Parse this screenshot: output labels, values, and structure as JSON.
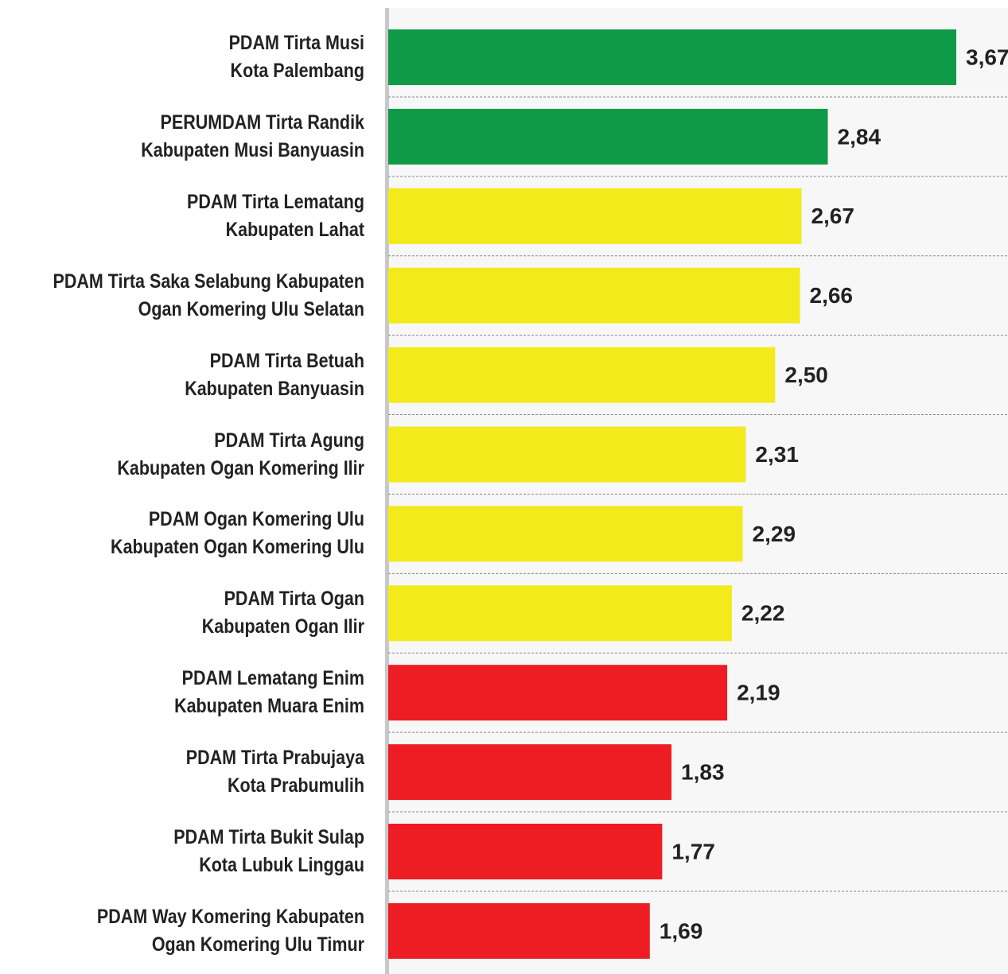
{
  "chart_data": {
    "type": "hbar",
    "categories": [
      "PDAM Tirta Musi\nKota Palembang",
      "PERUMDAM Tirta Randik\nKabupaten Musi Banyuasin",
      "PDAM Tirta Lematang\nKabupaten Lahat",
      "PDAM Tirta Saka Selabung Kabupaten\nOgan Komering Ulu Selatan",
      "PDAM Tirta Betuah\nKabupaten Banyuasin",
      "PDAM Tirta Agung\nKabupaten Ogan Komering Ilir",
      "PDAM Ogan Komering Ulu\nKabupaten Ogan Komering Ulu",
      "PDAM Tirta Ogan\nKabupaten Ogan Ilir",
      "PDAM Lematang Enim\nKabupaten Muara Enim",
      "PDAM Tirta Prabujaya\nKota Prabumulih",
      "PDAM Tirta Bukit Sulap\nKota Lubuk Linggau",
      "PDAM Way Komering Kabupaten\nOgan Komering Ulu Timur"
    ],
    "values": [
      3.67,
      2.84,
      2.67,
      2.66,
      2.5,
      2.31,
      2.29,
      2.22,
      2.19,
      1.83,
      1.77,
      1.69
    ],
    "value_labels": [
      "3,67",
      "2,84",
      "2,67",
      "2,66",
      "2,50",
      "2,31",
      "2,29",
      "2,22",
      "2,19",
      "1,83",
      "1,77",
      "1,69"
    ],
    "colors": [
      "#0f9a48",
      "#0f9a48",
      "#f2ea1a",
      "#f2ea1a",
      "#f2ea1a",
      "#f2ea1a",
      "#f2ea1a",
      "#f2ea1a",
      "#ee1d24",
      "#ee1d24",
      "#ee1d24",
      "#ee1d24"
    ]
  }
}
